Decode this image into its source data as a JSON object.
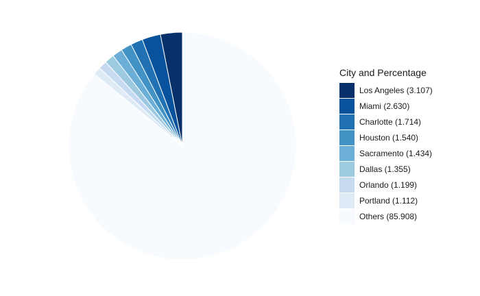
{
  "chart_data": {
    "type": "pie",
    "title": "",
    "legend_title": "City and Percentage",
    "legend_position": "right",
    "start_angle": "12 o'clock",
    "direction": "counterclockwise",
    "slices": [
      {
        "name": "Los Angeles",
        "value": 3.107,
        "label": "Los Angeles (3.107)",
        "color": "#08306b"
      },
      {
        "name": "Miami",
        "value": 2.63,
        "label": "Miami (2.630)",
        "color": "#08519c"
      },
      {
        "name": "Charlotte",
        "value": 1.714,
        "label": "Charlotte (1.714)",
        "color": "#2171b5"
      },
      {
        "name": "Houston",
        "value": 1.54,
        "label": "Houston (1.540)",
        "color": "#4292c6"
      },
      {
        "name": "Sacramento",
        "value": 1.434,
        "label": "Sacramento (1.434)",
        "color": "#6baed6"
      },
      {
        "name": "Dallas",
        "value": 1.355,
        "label": "Dallas (1.355)",
        "color": "#9ecae1"
      },
      {
        "name": "Orlando",
        "value": 1.199,
        "label": "Orlando (1.199)",
        "color": "#c6dbef"
      },
      {
        "name": "Portland",
        "value": 1.112,
        "label": "Portland (1.112)",
        "color": "#deebf7"
      },
      {
        "name": "Others",
        "value": 85.908,
        "label": "Others (85.908)",
        "color": "#f7fbff"
      }
    ]
  }
}
